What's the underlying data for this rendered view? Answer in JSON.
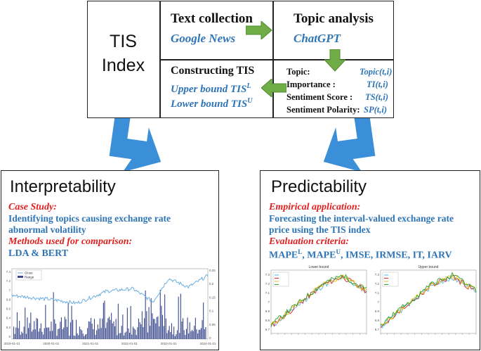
{
  "tis_box": {
    "title_line1": "TIS",
    "title_line2": "Index",
    "text_collection": {
      "title": "Text collection",
      "source": "Google News"
    },
    "topic_analysis": {
      "title": "Topic analysis",
      "tool": "ChatGPT"
    },
    "constructing": {
      "title": "Constructing TIS",
      "upper": "Upper bound  TIS",
      "upper_sup": "L",
      "lower": "Lower bound TIS",
      "lower_sup": "U"
    },
    "outputs": [
      {
        "label": "Topic:",
        "symbol": "Topic(t,i)"
      },
      {
        "label": "Importance :",
        "symbol": "TI(t,i)"
      },
      {
        "label": "Sentiment Score :",
        "symbol": "TS(t,i)"
      },
      {
        "label": "Sentiment Polarity:",
        "symbol": "SP(t,i)"
      }
    ]
  },
  "interpretability": {
    "title": "Interpretability",
    "case_label": "Case Study:",
    "case_text": "Identifying topics causing exchange rate abnormal volatility",
    "methods_label": "Methods used for comparison:",
    "methods_text": "LDA & BERT",
    "chart": {
      "legend": [
        "Close",
        "Range"
      ],
      "left_ticks": [
        "7.4",
        "7.2",
        "7",
        "6.8",
        "6.6",
        "6.4",
        "6.2",
        "6"
      ],
      "right_ticks": [
        "0.25",
        "0.2",
        "0.15",
        "0.1",
        "0.05",
        "0"
      ],
      "x_ticks": [
        "2019-01-01",
        "2020-01-01",
        "2021-01-01",
        "2022-01-01",
        "2023-01-01",
        "2024-01-01"
      ]
    }
  },
  "predictability": {
    "title": "Predictability",
    "emp_label": "Empirical application:",
    "emp_text": "Forecasting the interval-valued exchange rate price using the TIS index",
    "eval_label": "Evaluation criteria:",
    "eval_text_parts": [
      "MAPE",
      "L",
      ", MAPE",
      "U",
      ", IMSE, IRMSE, IT, IARV"
    ],
    "charts": [
      {
        "title": "Lower bound",
        "y_ticks": [
          "7.3",
          "7.2",
          "7.1",
          "7",
          "6.9",
          "6.8",
          "6.7"
        ]
      },
      {
        "title": "Upper bound",
        "y_ticks": [
          "7.3",
          "7.2",
          "7.1",
          "7",
          "6.9",
          "6.8",
          "6.7"
        ]
      }
    ]
  },
  "colors": {
    "blue_text": "#2e75b6",
    "red_text": "#e02020",
    "arrow_green": "#70ad47",
    "arrow_blue": "#3a8fd8",
    "bars": "#3b4a8c",
    "close_line": "#6aaee0"
  }
}
